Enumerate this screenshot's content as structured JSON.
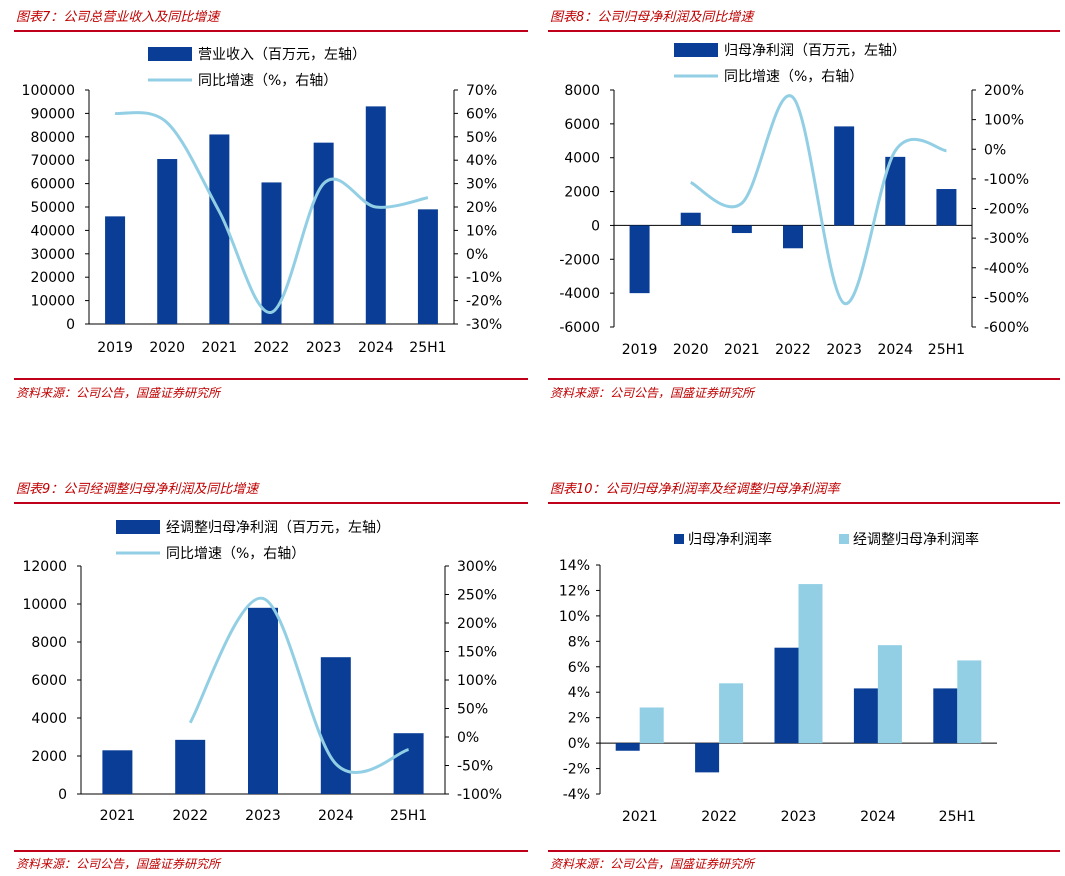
{
  "source_text": "资料来源：公司公告，国盛证券研究所",
  "colors": {
    "bar_dark": "#0a3e96",
    "bar_light": "#92cfe4",
    "line": "#92cfe4",
    "title_red": "#c00000",
    "rule_red": "#c0001b"
  },
  "chart_data": [
    {
      "id": "fig7",
      "type": "bar+line",
      "title": "图表7：公司总营业收入及同比增速",
      "categories": [
        "2019",
        "2020",
        "2021",
        "2022",
        "2023",
        "2024",
        "25H1"
      ],
      "series": [
        {
          "name": "营业收入（百万元，左轴）",
          "kind": "bar",
          "axis": "left",
          "values": [
            46000,
            70500,
            81000,
            60500,
            77500,
            93000,
            49000
          ]
        },
        {
          "name": "同比增速（%，右轴）",
          "kind": "line",
          "axis": "right",
          "values": [
            60,
            56,
            18,
            -25,
            30,
            20,
            24
          ]
        }
      ],
      "ylim_left": [
        0,
        100000
      ],
      "yticks_left": [
        "0",
        "10000",
        "20000",
        "30000",
        "40000",
        "50000",
        "60000",
        "70000",
        "80000",
        "90000",
        "100000"
      ],
      "ylim_right": [
        -30,
        70
      ],
      "yticks_right": [
        "-30%",
        "-20%",
        "-10%",
        "0%",
        "10%",
        "20%",
        "30%",
        "40%",
        "50%",
        "60%",
        "70%"
      ]
    },
    {
      "id": "fig8",
      "type": "bar+line",
      "title": "图表8：公司归母净利润及同比增速",
      "categories": [
        "2019",
        "2020",
        "2021",
        "2022",
        "2023",
        "2024",
        "25H1"
      ],
      "series": [
        {
          "name": "归母净利润（百万元，左轴）",
          "kind": "bar",
          "axis": "left",
          "values": [
            -4000,
            750,
            -450,
            -1350,
            5850,
            4050,
            2150
          ]
        },
        {
          "name": "同比增速（%，右轴）",
          "kind": "line",
          "axis": "right",
          "values": [
            null,
            -112,
            -182,
            175,
            -520,
            -5,
            -5
          ]
        }
      ],
      "ylim_left": [
        -6000,
        8000
      ],
      "yticks_left": [
        "-6000",
        "-4000",
        "-2000",
        "0",
        "2000",
        "4000",
        "6000",
        "8000"
      ],
      "ylim_right": [
        -600,
        200
      ],
      "yticks_right": [
        "-600%",
        "-500%",
        "-400%",
        "-300%",
        "-200%",
        "-100%",
        "0%",
        "100%",
        "200%"
      ]
    },
    {
      "id": "fig9",
      "type": "bar+line",
      "title": "图表9：公司经调整归母净利润及同比增速",
      "categories": [
        "2021",
        "2022",
        "2023",
        "2024",
        "25H1"
      ],
      "series": [
        {
          "name": "经调整归母净利润（百万元，左轴）",
          "kind": "bar",
          "axis": "left",
          "values": [
            2300,
            2850,
            9800,
            7200,
            3200
          ]
        },
        {
          "name": "同比增速（%，右轴）",
          "kind": "line",
          "axis": "right",
          "values": [
            null,
            25,
            243,
            -47,
            -22
          ]
        }
      ],
      "ylim_left": [
        0,
        12000
      ],
      "yticks_left": [
        "0",
        "2000",
        "4000",
        "6000",
        "8000",
        "10000",
        "12000"
      ],
      "ylim_right": [
        -100,
        300
      ],
      "yticks_right": [
        "-100%",
        "-50%",
        "0%",
        "50%",
        "100%",
        "150%",
        "200%",
        "250%",
        "300%"
      ]
    },
    {
      "id": "fig10",
      "type": "bar",
      "title": "图表10：公司归母净利润率及经调整归母净利润率",
      "categories": [
        "2021",
        "2022",
        "2023",
        "2024",
        "25H1"
      ],
      "series": [
        {
          "name": "归母净利润率",
          "kind": "bar",
          "values": [
            -0.6,
            -2.3,
            7.5,
            4.3,
            4.3
          ]
        },
        {
          "name": "经调整归母净利润率",
          "kind": "bar",
          "values": [
            2.8,
            4.7,
            12.5,
            7.7,
            6.5
          ]
        }
      ],
      "ylim": [
        -4,
        14
      ],
      "yticks": [
        "-4%",
        "-2%",
        "0%",
        "2%",
        "4%",
        "6%",
        "8%",
        "10%",
        "12%",
        "14%"
      ]
    }
  ]
}
